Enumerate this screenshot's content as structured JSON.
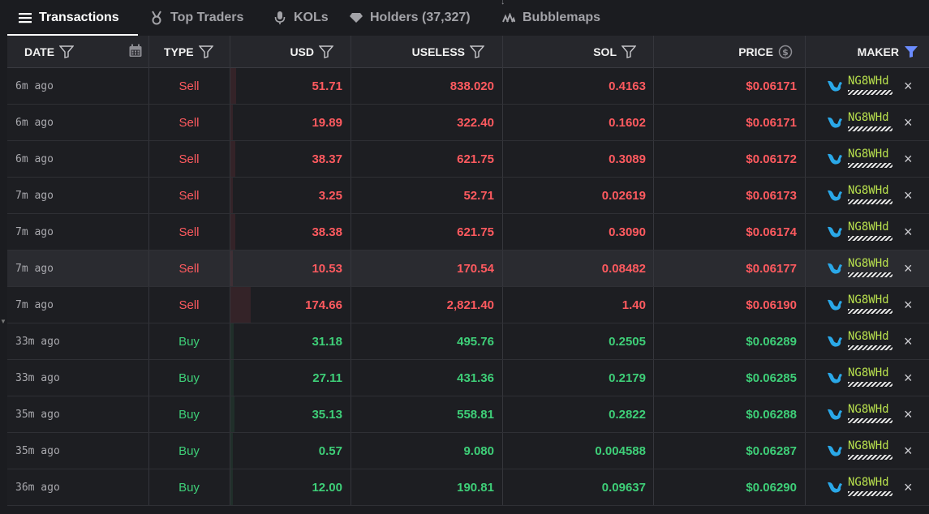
{
  "tabs": [
    {
      "label": "Transactions",
      "icon": "list-icon",
      "active": true
    },
    {
      "label": "Top Traders",
      "icon": "medal-icon",
      "active": false
    },
    {
      "label": "KOLs",
      "icon": "microphone-icon",
      "active": false
    },
    {
      "label": "Holders (37,327)",
      "icon": "gem-icon",
      "active": false
    },
    {
      "label": "Bubblemaps",
      "icon": "bubblemaps-icon",
      "active": false
    }
  ],
  "table": {
    "headers": {
      "date": "DATE",
      "type": "TYPE",
      "usd": "USD",
      "token": "USELESS",
      "sol": "SOL",
      "price": "PRICE",
      "maker": "MAKER"
    },
    "colors": {
      "sell": "#ff5a5f",
      "buy": "#3ecf78",
      "maker": "#b8e04d",
      "active_filter": "#6b8cff"
    },
    "rows": [
      {
        "date": "6m ago",
        "type": "Sell",
        "usd": "51.71",
        "token": "838.020",
        "sol": "0.4163",
        "price": "$0.06171",
        "maker": "NG8WHd",
        "bar": 0.05
      },
      {
        "date": "6m ago",
        "type": "Sell",
        "usd": "19.89",
        "token": "322.40",
        "sol": "0.1602",
        "price": "$0.06171",
        "maker": "NG8WHd",
        "bar": 0.02
      },
      {
        "date": "6m ago",
        "type": "Sell",
        "usd": "38.37",
        "token": "621.75",
        "sol": "0.3089",
        "price": "$0.06172",
        "maker": "NG8WHd",
        "bar": 0.04
      },
      {
        "date": "7m ago",
        "type": "Sell",
        "usd": "3.25",
        "token": "52.71",
        "sol": "0.02619",
        "price": "$0.06173",
        "maker": "NG8WHd",
        "bar": 0.005
      },
      {
        "date": "7m ago",
        "type": "Sell",
        "usd": "38.38",
        "token": "621.75",
        "sol": "0.3090",
        "price": "$0.06174",
        "maker": "NG8WHd",
        "bar": 0.04
      },
      {
        "date": "7m ago",
        "type": "Sell",
        "usd": "10.53",
        "token": "170.54",
        "sol": "0.08482",
        "price": "$0.06177",
        "maker": "NG8WHd",
        "bar": 0.01,
        "highlight": true
      },
      {
        "date": "7m ago",
        "type": "Sell",
        "usd": "174.66",
        "token": "2,821.40",
        "sol": "1.40",
        "price": "$0.06190",
        "maker": "NG8WHd",
        "bar": 0.17
      },
      {
        "date": "33m ago",
        "type": "Buy",
        "usd": "31.18",
        "token": "495.76",
        "sol": "0.2505",
        "price": "$0.06289",
        "maker": "NG8WHd",
        "bar": 0.03
      },
      {
        "date": "33m ago",
        "type": "Buy",
        "usd": "27.11",
        "token": "431.36",
        "sol": "0.2179",
        "price": "$0.06285",
        "maker": "NG8WHd",
        "bar": 0.03
      },
      {
        "date": "35m ago",
        "type": "Buy",
        "usd": "35.13",
        "token": "558.81",
        "sol": "0.2822",
        "price": "$0.06288",
        "maker": "NG8WHd",
        "bar": 0.035
      },
      {
        "date": "35m ago",
        "type": "Buy",
        "usd": "0.57",
        "token": "9.080",
        "sol": "0.004588",
        "price": "$0.06287",
        "maker": "NG8WHd",
        "bar": 0.005
      },
      {
        "date": "36m ago",
        "type": "Buy",
        "usd": "12.00",
        "token": "190.81",
        "sol": "0.09637",
        "price": "$0.06290",
        "maker": "NG8WHd",
        "bar": 0.012
      }
    ]
  }
}
